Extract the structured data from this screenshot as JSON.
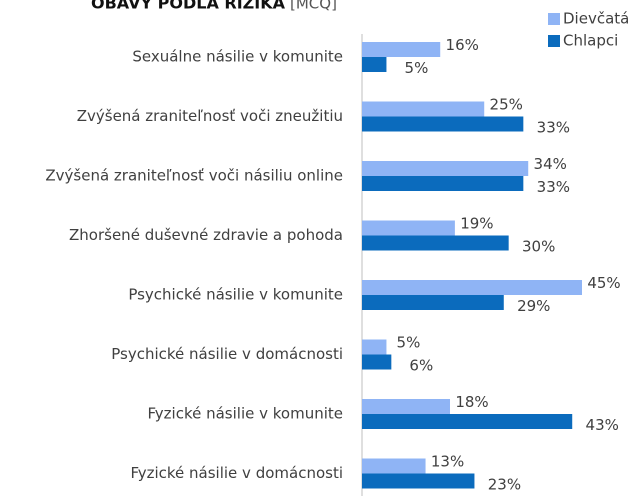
{
  "chart_data": {
    "type": "bar",
    "orientation": "horizontal",
    "title": "OBAVY PODĽA RIZIKA",
    "subtitle": "[MCQ]",
    "categories": [
      "Sexuálne násilie v komunite",
      "Zvýšená zraniteľnosť voči zneužitiu",
      "Zvýšená zraniteľnosť voči násiliu online",
      "Zhoršené duševné zdravie a pohoda",
      "Psychické násilie v komunite",
      "Psychické násilie v domácnosti",
      "Fyzické násilie v komunite",
      "Fyzické násilie v domácnosti"
    ],
    "series": [
      {
        "name": "Dievčatá",
        "color": "#8fb4f5",
        "values": [
          16,
          25,
          34,
          19,
          45,
          5,
          18,
          13
        ],
        "value_labels": [
          "16%",
          "25%",
          "34%",
          "19%",
          "45%",
          "5%",
          "18%",
          "13%"
        ]
      },
      {
        "name": "Chlapci",
        "color": "#0b6bbd",
        "values": [
          5,
          33,
          33,
          30,
          29,
          6,
          43,
          23
        ],
        "value_labels": [
          "5%",
          "33%",
          "33%",
          "30%",
          "29%",
          "6%",
          "43%",
          "23%"
        ]
      }
    ],
    "legend": "top-right"
  }
}
